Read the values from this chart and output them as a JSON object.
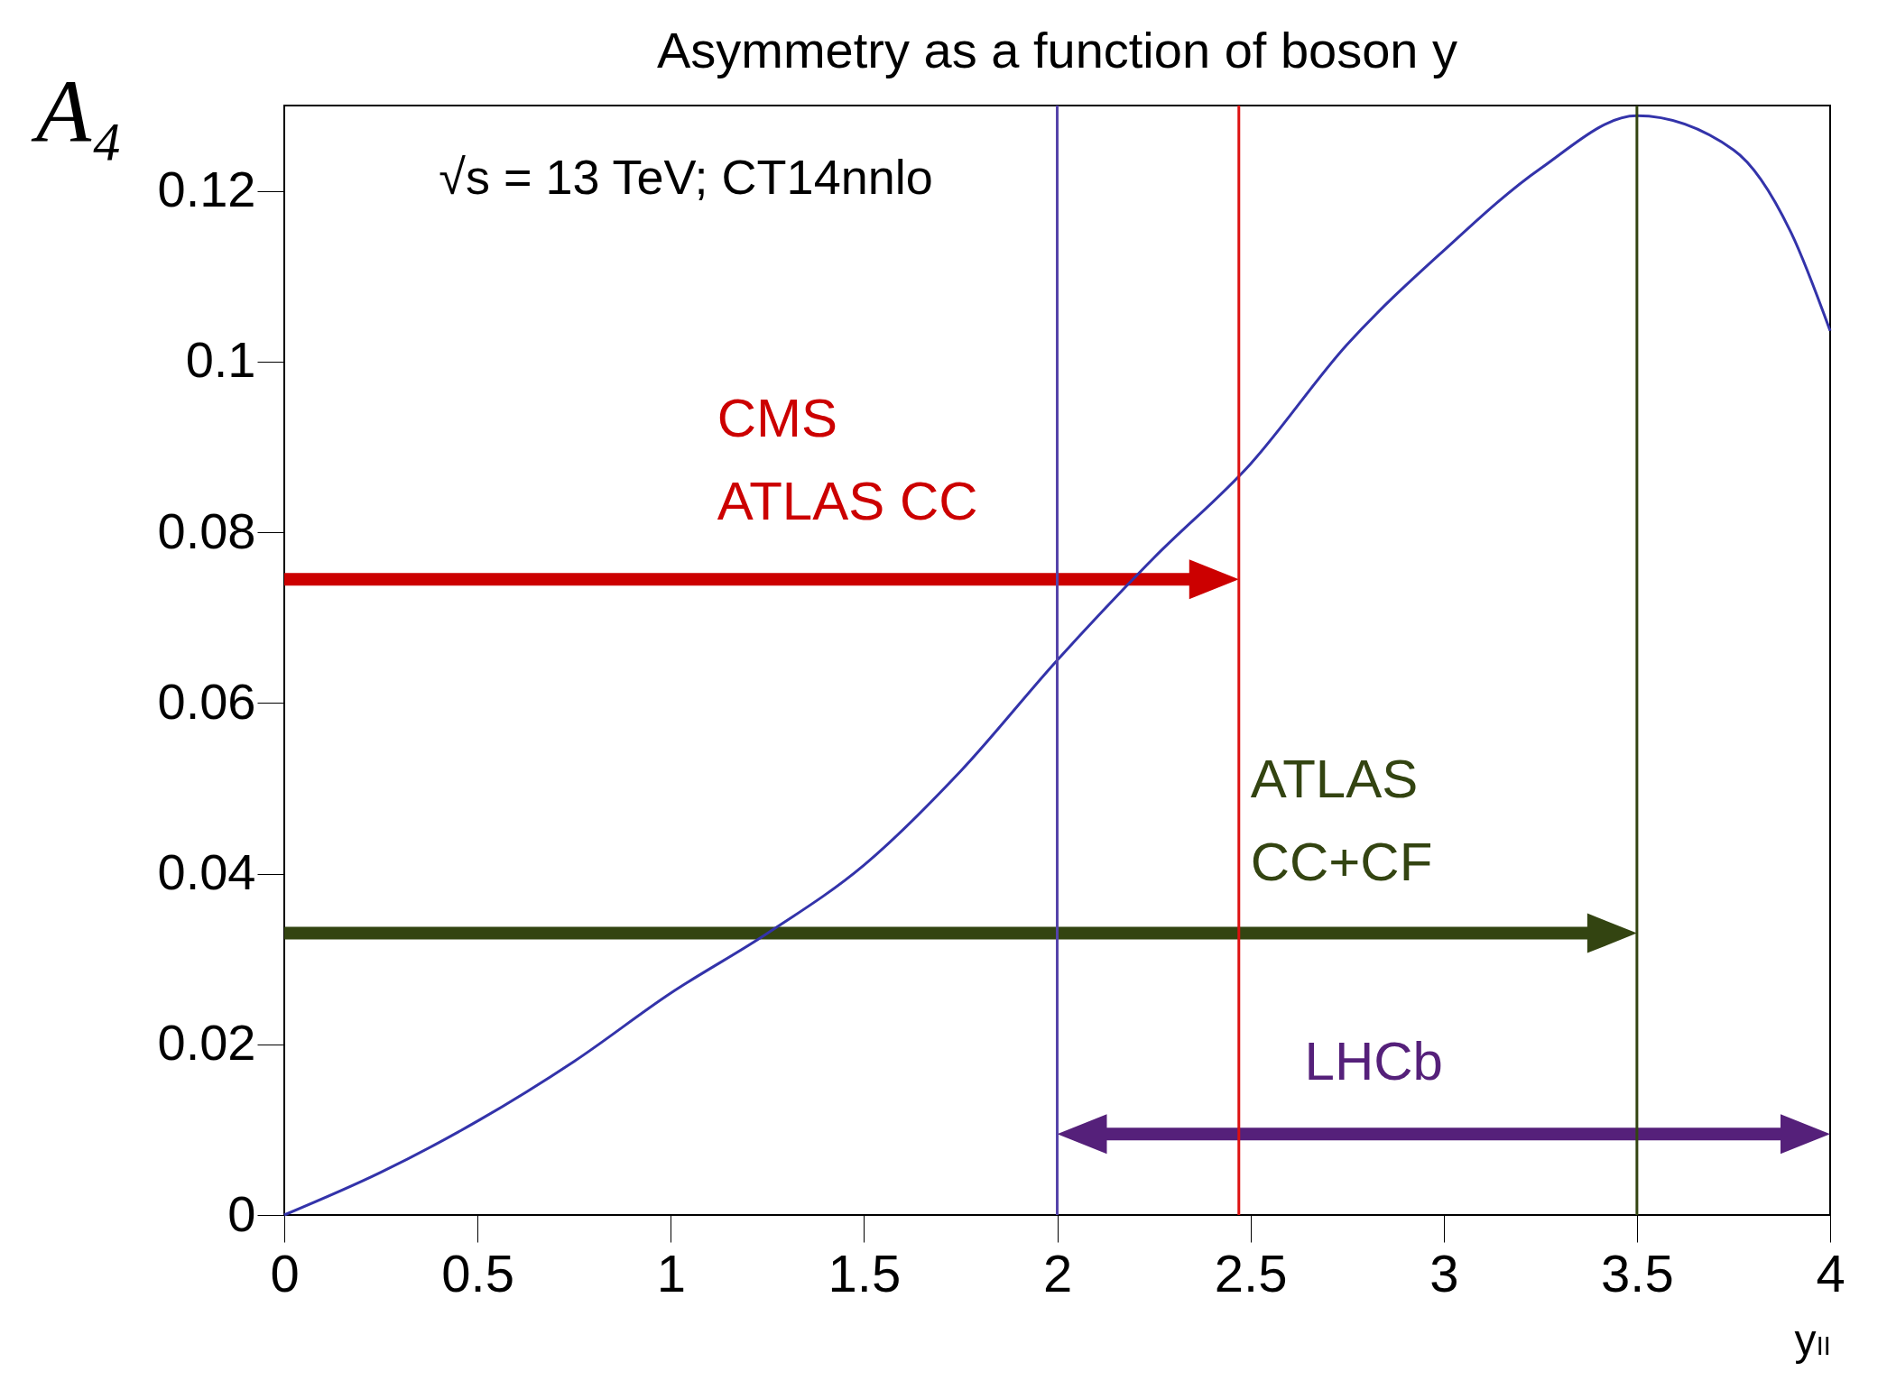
{
  "chart_data": {
    "type": "line",
    "title": "Asymmetry as a function of boson y",
    "xlabel": "yₗₗ",
    "ylabel": "A₄",
    "x": [
      0,
      0.25,
      0.5,
      0.75,
      1,
      1.25,
      1.5,
      1.75,
      2,
      2.25,
      2.5,
      2.75,
      3,
      3.25,
      3.5,
      3.75,
      3.9,
      4
    ],
    "series": [
      {
        "color": "#3333aa",
        "values": [
          0,
          0.005,
          0.011,
          0.018,
          0.026,
          0.033,
          0.041,
          0.052,
          0.065,
          0.077,
          0.088,
          0.102,
          0.113,
          0.1226,
          0.1288,
          0.1248,
          0.115,
          0.1036
        ]
      }
    ],
    "xlim": [
      0,
      4
    ],
    "xticks": [
      0,
      0.5,
      1,
      1.5,
      2,
      2.5,
      3,
      3.5,
      4
    ],
    "ylim": [
      0,
      0.13
    ],
    "yticks": [
      0,
      0.02,
      0.04,
      0.06,
      0.08,
      0.1,
      0.12
    ],
    "grid": false,
    "marker": "none",
    "line_style": "solid",
    "ref_lines": [
      {
        "axis": "x",
        "value": 2,
        "color": "#5544aa"
      },
      {
        "axis": "x",
        "value": 2.47,
        "color": "#dd1111"
      },
      {
        "axis": "x",
        "value": 3.5,
        "color": "#334411"
      }
    ],
    "annotations": [
      "√s = 13 TeV; CT14nnlo",
      "CMS\nATLAS CC",
      "ATLAS\nCC+CF",
      "LHCb"
    ]
  }
}
